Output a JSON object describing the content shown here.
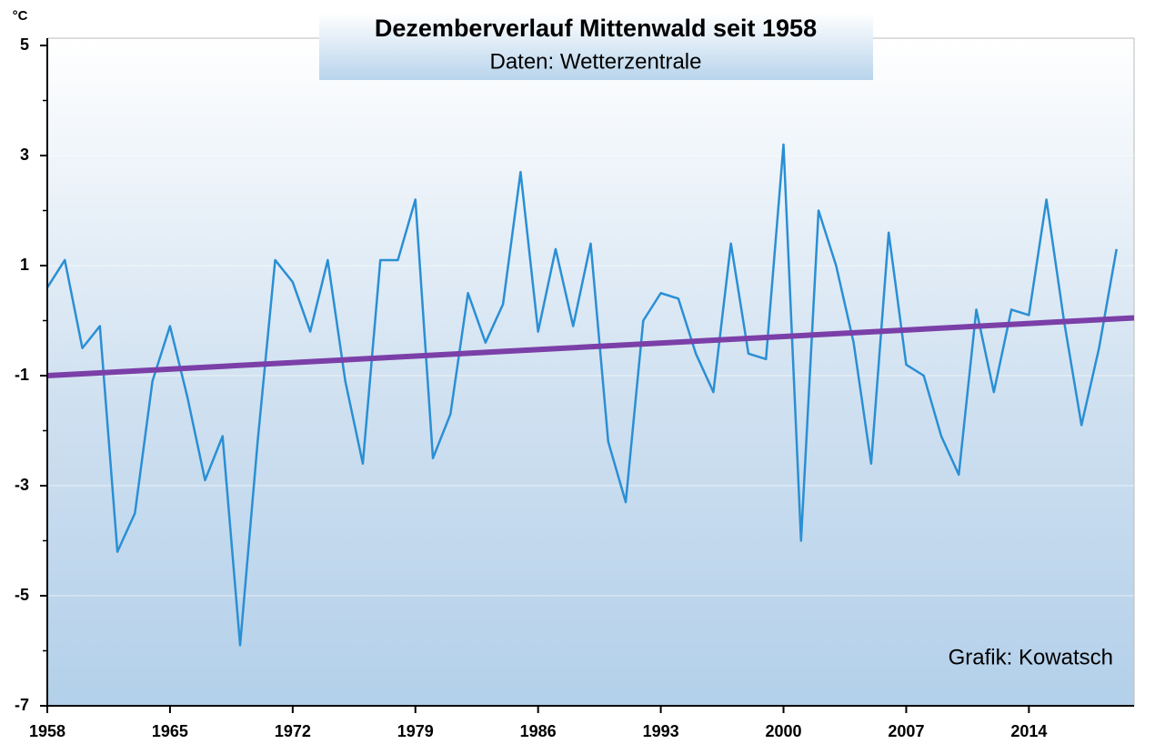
{
  "chart_data": {
    "type": "line",
    "title": "Dezemberverlauf Mittenwald seit 1958",
    "subtitle": "Daten: Wetterzentrale",
    "y_unit": "°C",
    "annotation": "Grafik: Kowatsch",
    "x": [
      1958,
      1959,
      1960,
      1961,
      1962,
      1963,
      1964,
      1965,
      1966,
      1967,
      1968,
      1969,
      1970,
      1971,
      1972,
      1973,
      1974,
      1975,
      1976,
      1977,
      1978,
      1979,
      1980,
      1981,
      1982,
      1983,
      1984,
      1985,
      1986,
      1987,
      1988,
      1989,
      1990,
      1991,
      1992,
      1993,
      1994,
      1995,
      1996,
      1997,
      1998,
      1999,
      2000,
      2001,
      2002,
      2003,
      2004,
      2005,
      2006,
      2007,
      2008,
      2009,
      2010,
      2011,
      2012,
      2013,
      2014,
      2015,
      2016,
      2017,
      2018,
      2019
    ],
    "series": [
      {
        "color": "#2a8fd4",
        "values": [
          0.6,
          1.1,
          -0.5,
          -0.1,
          -4.2,
          -3.5,
          -1.1,
          -0.1,
          -1.4,
          -2.9,
          -2.1,
          -5.9,
          -2.2,
          1.1,
          0.7,
          -0.2,
          1.1,
          -1.1,
          -2.6,
          1.1,
          1.1,
          2.2,
          -2.5,
          -1.7,
          0.5,
          -0.4,
          0.3,
          2.7,
          -0.2,
          1.3,
          -0.1,
          1.4,
          -2.2,
          -3.3,
          0.0,
          0.5,
          0.4,
          -0.6,
          -1.3,
          1.4,
          -0.6,
          -0.7,
          3.2,
          -4.0,
          2.0,
          1.0,
          -0.4,
          -2.6,
          1.6,
          -0.8,
          -1.0,
          -2.1,
          -2.8,
          0.2,
          -1.3,
          0.2,
          0.1,
          2.2,
          0.0,
          -1.9,
          -0.5,
          1.3
        ]
      }
    ],
    "trend": {
      "x": [
        1958,
        2020
      ],
      "values": [
        -1.0,
        0.05
      ],
      "color": "#7b3fa8"
    },
    "xlim": [
      1958,
      2020
    ],
    "xticks": [
      1958,
      1965,
      1972,
      1979,
      1986,
      1993,
      2000,
      2007,
      2014
    ],
    "ylim": [
      -7,
      5
    ],
    "yticks": [
      5,
      3,
      1,
      -1,
      -3,
      -5,
      -7
    ],
    "yminor": [
      4,
      2,
      0,
      -2,
      -4,
      -6
    ],
    "grid": true
  }
}
